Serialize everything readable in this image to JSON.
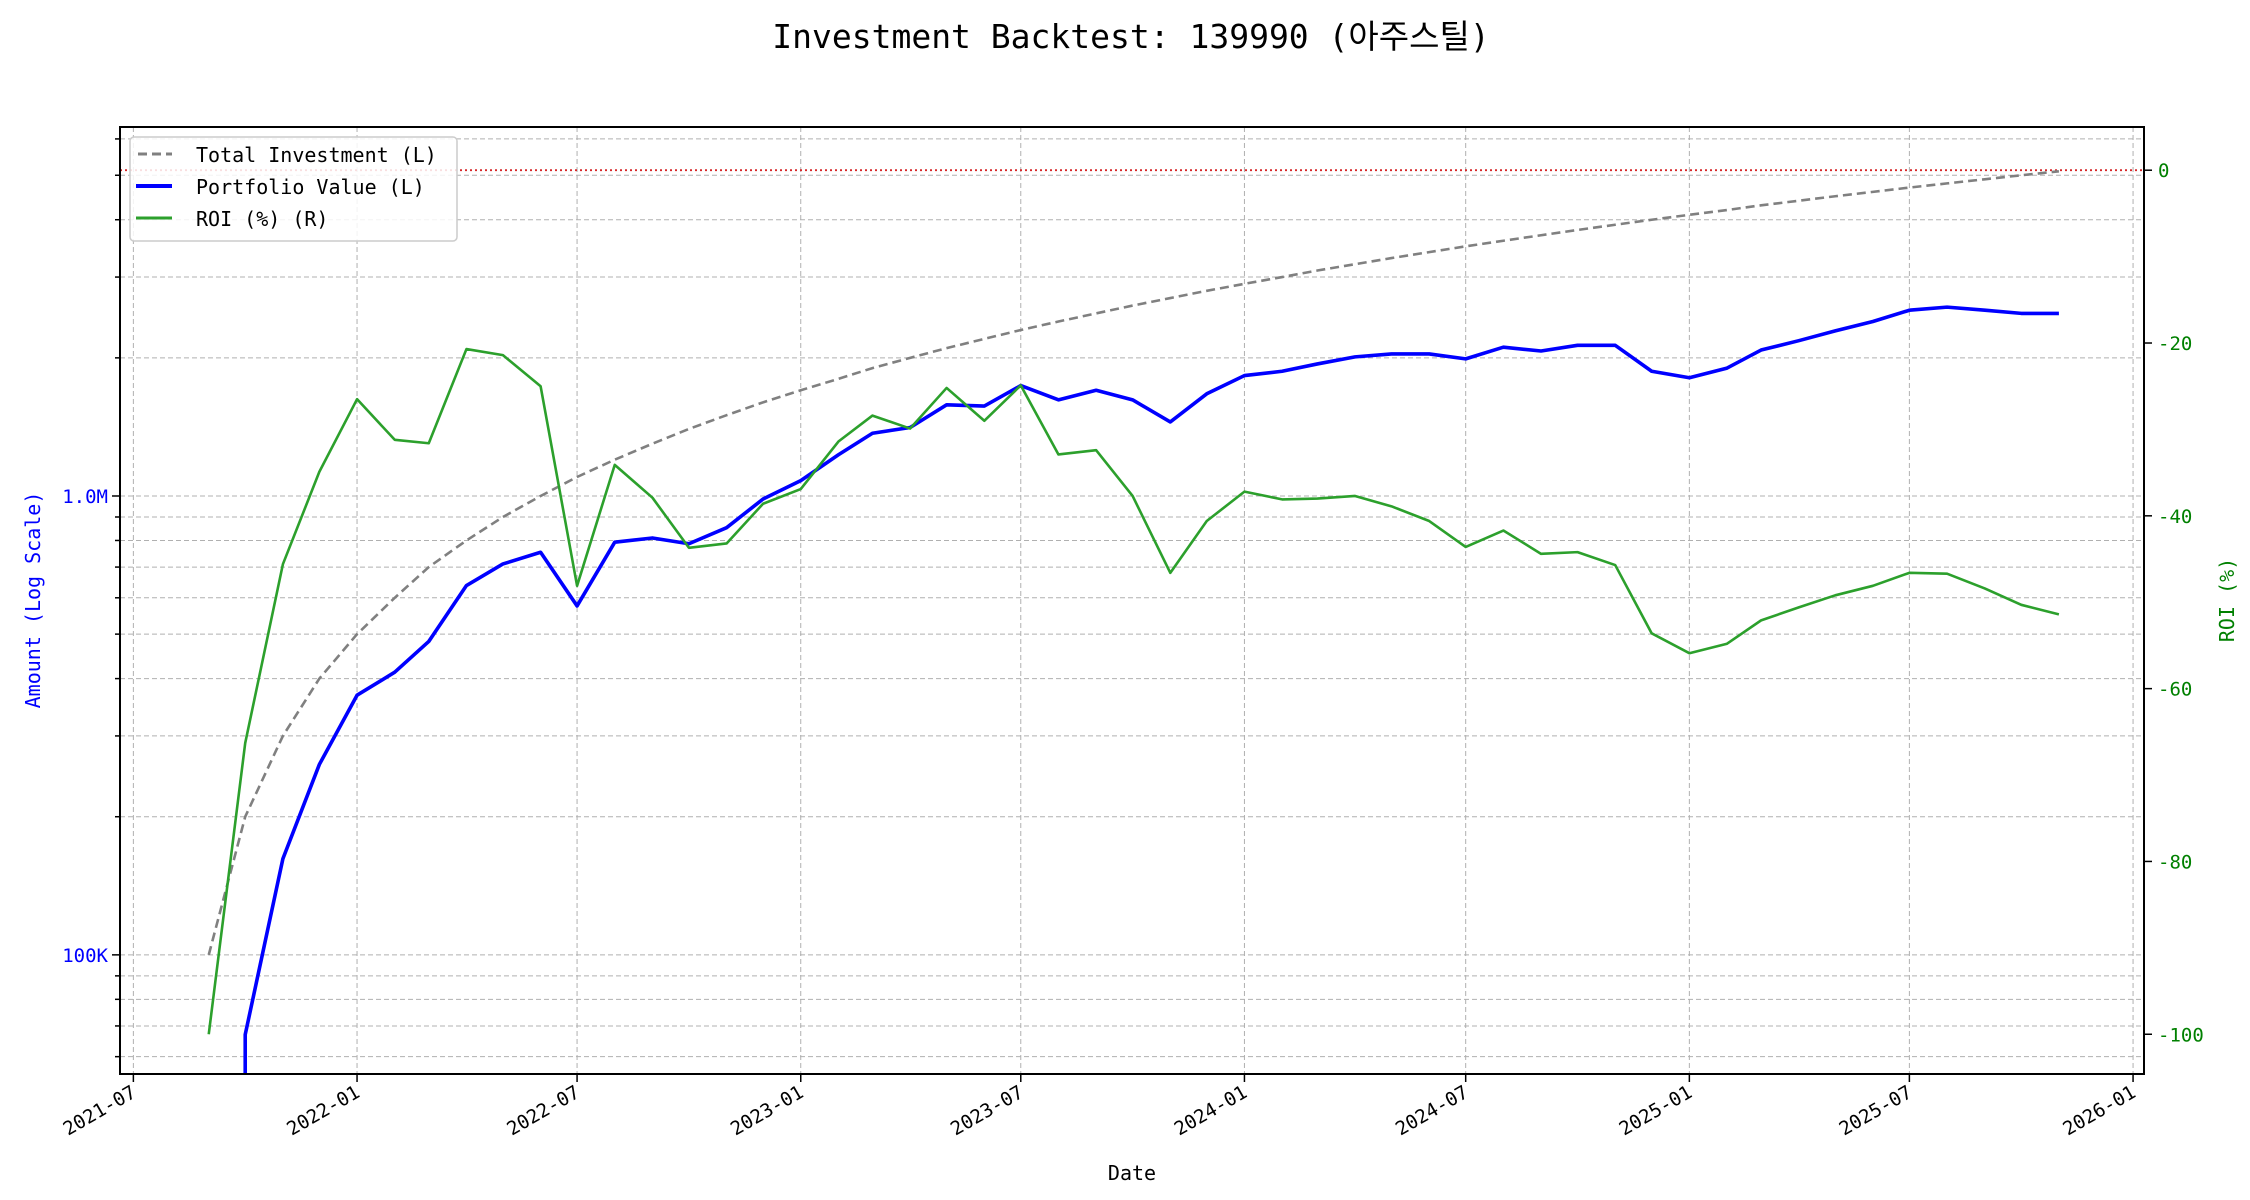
{
  "chart_data": {
    "type": "line",
    "title": "Investment Backtest: 139990 (아주스틸)",
    "xlabel": "Date",
    "ylabel_left": "Amount (Log Scale)",
    "ylabel_right": "ROI (%)",
    "yscale_left": "log",
    "ylim_left": [
      55000,
      6370000
    ],
    "ylim_right": [
      -104.6,
      5
    ],
    "xlim": [
      "2021-06-20",
      "2026-01-10"
    ],
    "grid": true,
    "legend_position": "top-left",
    "x_ticks": [
      "2021-07",
      "2022-01",
      "2022-07",
      "2023-01",
      "2023-07",
      "2024-01",
      "2024-07",
      "2025-01",
      "2025-07",
      "2026-01"
    ],
    "y_ticks_left": [
      {
        "value": 100000,
        "label": "100K"
      },
      {
        "value": 1000000,
        "label": "1.0M"
      }
    ],
    "y_ticks_right": [
      0,
      -20,
      -40,
      -60,
      -80,
      -100
    ],
    "reference_line": {
      "axis": "right",
      "value": 0,
      "color": "#d62728",
      "style": "dotted"
    },
    "colors": {
      "investment": "#808080",
      "portfolio": "#0000ff",
      "roi": "#2ca02c",
      "left_axis": "#0000ff",
      "right_axis": "#008000"
    },
    "x": [
      "2021-09",
      "2021-10",
      "2021-11",
      "2021-12",
      "2022-01",
      "2022-02",
      "2022-03",
      "2022-04",
      "2022-05",
      "2022-06",
      "2022-07",
      "2022-08",
      "2022-09",
      "2022-10",
      "2022-11",
      "2022-12",
      "2023-01",
      "2023-02",
      "2023-03",
      "2023-04",
      "2023-05",
      "2023-06",
      "2023-07",
      "2023-08",
      "2023-09",
      "2023-10",
      "2023-11",
      "2023-12",
      "2024-01",
      "2024-02",
      "2024-03",
      "2024-04",
      "2024-05",
      "2024-06",
      "2024-07",
      "2024-08",
      "2024-09",
      "2024-10",
      "2024-11",
      "2024-12",
      "2025-01",
      "2025-02",
      "2025-03",
      "2025-04",
      "2025-05",
      "2025-06",
      "2025-07",
      "2025-08",
      "2025-09",
      "2025-10",
      "2025-11"
    ],
    "series": [
      {
        "name": "Total Investment (L)",
        "axis": "left",
        "style": "dashed",
        "values": [
          100000,
          200000,
          300000,
          400000,
          500000,
          600000,
          700000,
          800000,
          900000,
          1000000,
          1100000,
          1200000,
          1300000,
          1400000,
          1500000,
          1600000,
          1700000,
          1800000,
          1900000,
          2000000,
          2100000,
          2200000,
          2300000,
          2400000,
          2500000,
          2600000,
          2700000,
          2800000,
          2900000,
          3000000,
          3100000,
          3200000,
          3300000,
          3400000,
          3500000,
          3600000,
          3700000,
          3800000,
          3900000,
          4000000,
          4100000,
          4200000,
          4300000,
          4400000,
          4500000,
          4600000,
          4700000,
          4800000,
          4900000,
          5000000,
          5100000
        ]
      },
      {
        "name": "Portfolio Value (L)",
        "axis": "left",
        "style": "solid",
        "values": [
          0,
          67000,
          162000,
          260000,
          368000,
          413000,
          482000,
          638000,
          711000,
          754000,
          576000,
          793000,
          810000,
          787000,
          853000,
          985000,
          1080000,
          1230000,
          1370000,
          1410000,
          1580000,
          1570000,
          1740000,
          1620000,
          1700000,
          1620000,
          1450000,
          1670000,
          1830000,
          1870000,
          1940000,
          2010000,
          2040000,
          2040000,
          1990000,
          2110000,
          2070000,
          2130000,
          2130000,
          1870000,
          1810000,
          1900000,
          2080000,
          2180000,
          2290000,
          2400000,
          2540000,
          2580000,
          2540000,
          2500000,
          2500000
        ]
      },
      {
        "name": "ROI (%) (R)",
        "axis": "right",
        "style": "solid",
        "values": [
          -100,
          -66.3,
          -45.6,
          -34.9,
          -26.5,
          -31.2,
          -31.6,
          -20.7,
          -21.4,
          -25.0,
          -48.1,
          -34.1,
          -37.9,
          -43.7,
          -43.2,
          -38.6,
          -36.9,
          -31.4,
          -28.4,
          -29.9,
          -25.2,
          -29.0,
          -24.9,
          -32.9,
          -32.4,
          -37.7,
          -46.6,
          -40.6,
          -37.2,
          -38.1,
          -38.0,
          -37.7,
          -38.9,
          -40.6,
          -43.6,
          -41.7,
          -44.4,
          -44.2,
          -45.7,
          -53.6,
          -55.9,
          -54.8,
          -52.1,
          -50.6,
          -49.2,
          -48.1,
          -46.6,
          -46.7,
          -48.4,
          -50.3,
          -51.4
        ]
      }
    ]
  }
}
